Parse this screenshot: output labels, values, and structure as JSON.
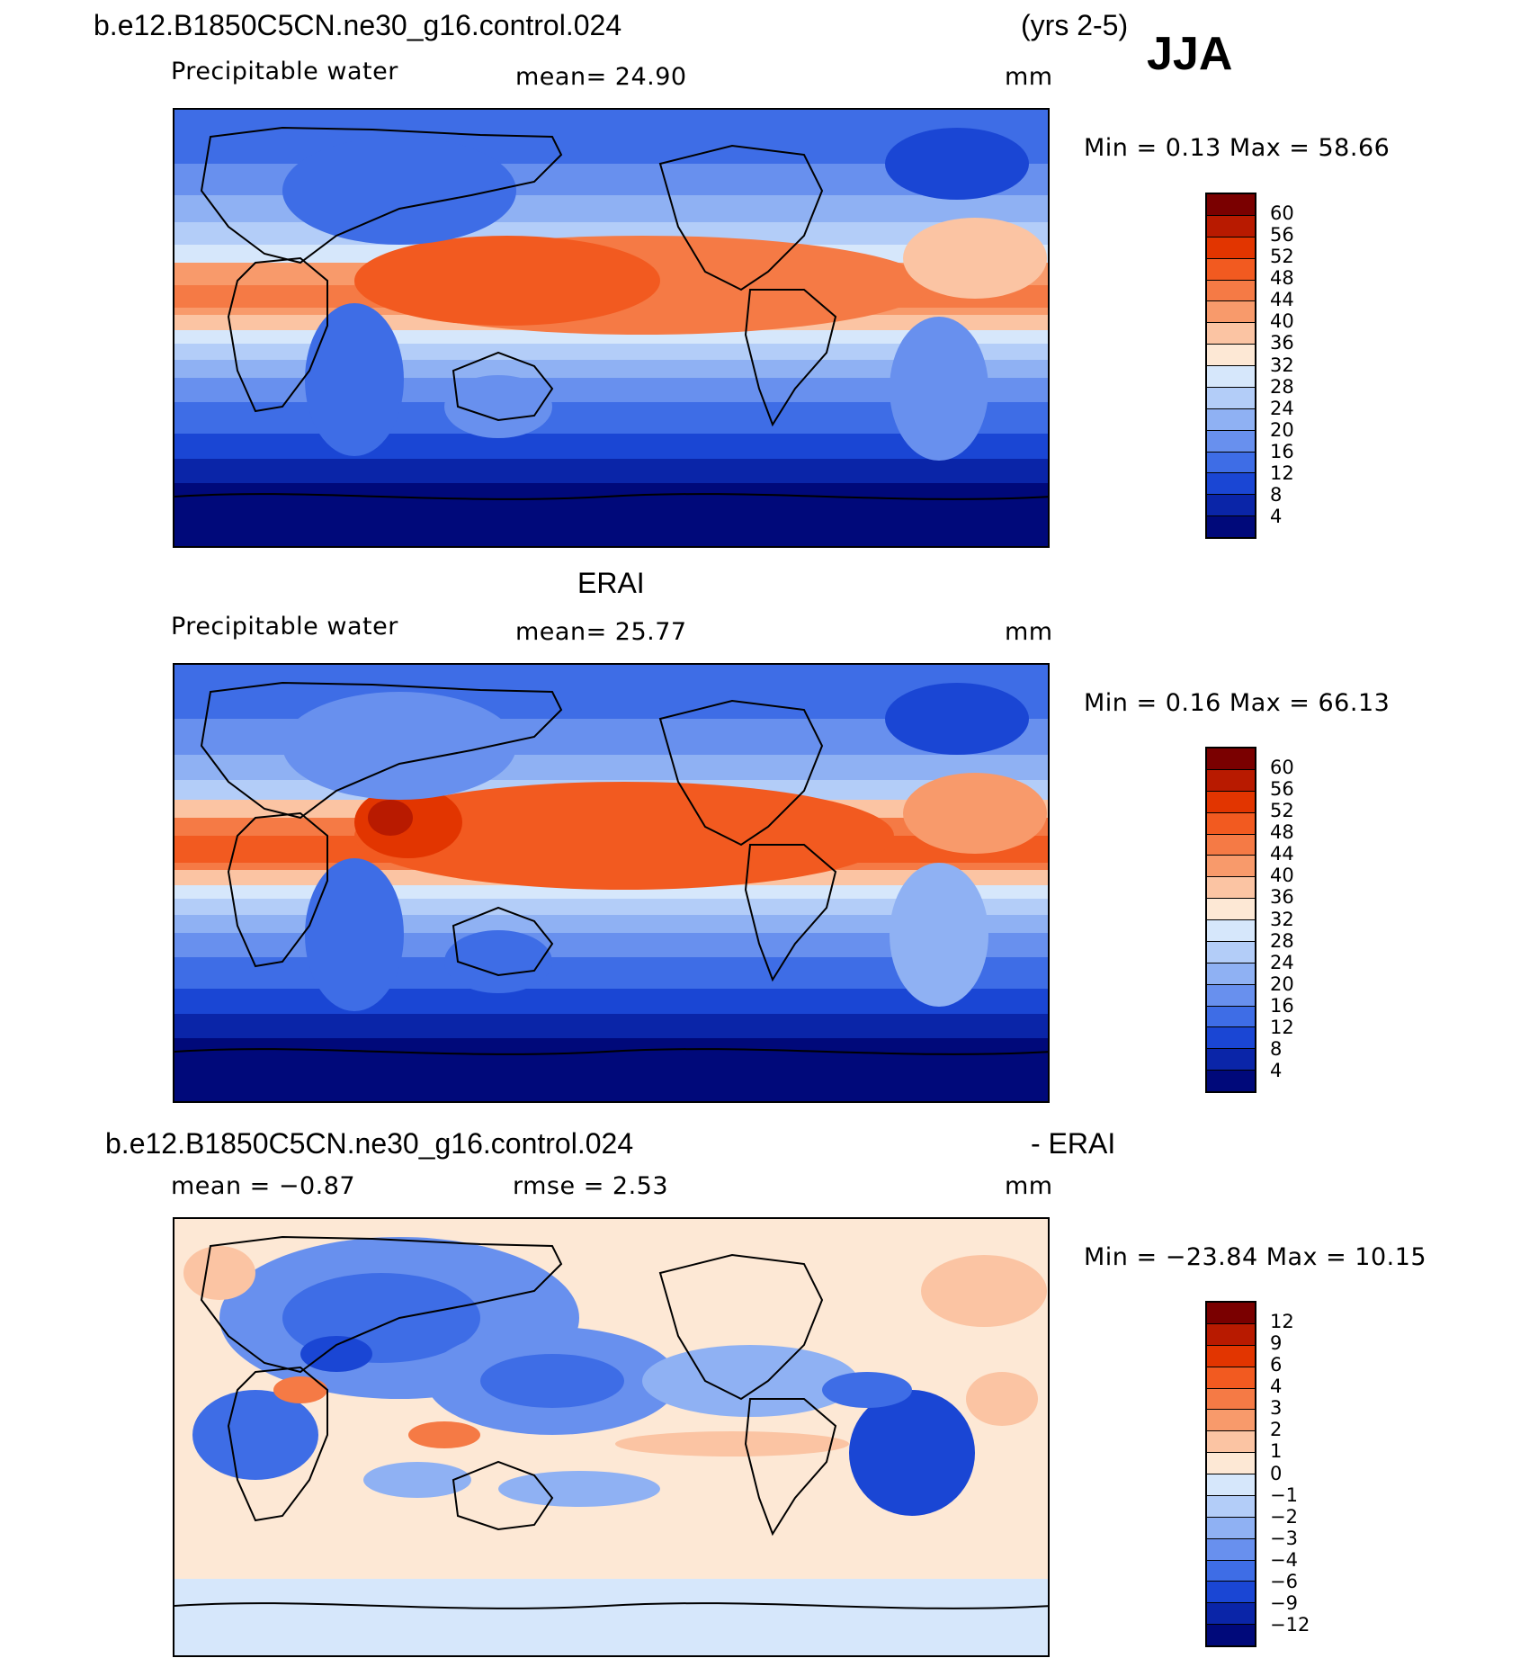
{
  "header": {
    "case_name": "b.e12.B1850C5CN.ne30_g16.control.024",
    "years": "(yrs 2-5)",
    "season": "JJA"
  },
  "panel1": {
    "variable": "Precipitable water",
    "mean": "mean=   24.90",
    "units": "mm",
    "minmax": "Min =     0.13  Max =    58.66",
    "colorbar": {
      "labels": [
        "60",
        "56",
        "52",
        "48",
        "44",
        "40",
        "36",
        "32",
        "28",
        "24",
        "20",
        "16",
        "12",
        "8",
        "4"
      ],
      "colors": [
        "#7a0000",
        "#b81a00",
        "#e23500",
        "#f25a20",
        "#f57a45",
        "#f89a6b",
        "#fbc4a3",
        "#fde8d5",
        "#d6e7fb",
        "#b3cdf8",
        "#8fb1f3",
        "#6890ee",
        "#3e6de6",
        "#1a46d4",
        "#0a25a8",
        "#00097a"
      ]
    }
  },
  "panel2": {
    "title": "ERAI",
    "variable": "Precipitable water",
    "mean": "mean=   25.77",
    "units": "mm",
    "minmax": "Min =     0.16  Max =    66.13",
    "colorbar": {
      "labels": [
        "60",
        "56",
        "52",
        "48",
        "44",
        "40",
        "36",
        "32",
        "28",
        "24",
        "20",
        "16",
        "12",
        "8",
        "4"
      ],
      "colors": [
        "#7a0000",
        "#b81a00",
        "#e23500",
        "#f25a20",
        "#f57a45",
        "#f89a6b",
        "#fbc4a3",
        "#fde8d5",
        "#d6e7fb",
        "#b3cdf8",
        "#8fb1f3",
        "#6890ee",
        "#3e6de6",
        "#1a46d4",
        "#0a25a8",
        "#00097a"
      ]
    }
  },
  "panel3": {
    "title_left": "b.e12.B1850C5CN.ne30_g16.control.024",
    "title_right": "- ERAI",
    "mean": "mean =   −0.87",
    "rmse": "rmse =     2.53",
    "units": "mm",
    "minmax": "Min =  −23.84  Max =    10.15",
    "colorbar": {
      "labels": [
        "12",
        "9",
        "6",
        "4",
        "3",
        "2",
        "1",
        "0",
        "−1",
        "−2",
        "−3",
        "−4",
        "−6",
        "−9",
        "−12"
      ],
      "colors": [
        "#7a0000",
        "#b81a00",
        "#e23500",
        "#f25a20",
        "#f57a45",
        "#f89a6b",
        "#fbc4a3",
        "#fde8d5",
        "#d6e7fb",
        "#b3cdf8",
        "#8fb1f3",
        "#6890ee",
        "#3e6de6",
        "#1a46d4",
        "#0a25a8",
        "#00097a"
      ]
    }
  }
}
